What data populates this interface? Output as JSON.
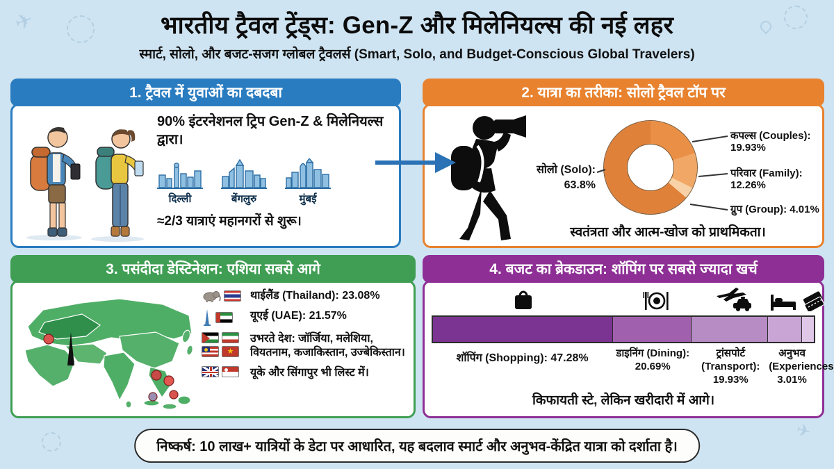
{
  "page": {
    "title": "भारतीय ट्रैवल ट्रेंड्स: Gen-Z और मिलेनियल्स की नई लहर",
    "subtitle": "स्मार्ट, सोलो, और बजट-सजग ग्लोबल ट्रैवलर्स (Smart, Solo, and Budget-Conscious Global Travelers)",
    "footer": "निष्कर्ष: 10 लाख+ यात्रियों के डेटा पर आधारित, यह बदलाव स्मार्ट और अनुभव-केंद्रित यात्रा को दर्शाता है।",
    "colors": {
      "background": "#cfe4f2",
      "panel1_accent": "#2a7cc0",
      "panel2_accent": "#e8822e",
      "panel3_accent": "#3f9e53",
      "panel4_accent": "#8e2f96"
    }
  },
  "panel1": {
    "header": "1. ट्रैवल में युवाओं का दबदबा",
    "stat": "90% इंटरनेशनल ट्रिप Gen-Z & मिलेनियल्स द्वारा।",
    "cities": [
      "दिल्ली",
      "बेंगलुरु",
      "मुंबई"
    ],
    "caption": "≈2/3 यात्राएं महानगरों से शुरू।",
    "icons": [
      "travelers-illustration",
      "city-skyline-delhi",
      "city-skyline-bengaluru",
      "city-skyline-mumbai"
    ]
  },
  "panel2": {
    "header": "2. यात्रा का तरीका: सोलो ट्रैवल टॉप पर",
    "caption": "स्वतंत्रता और आत्म-खोज को प्राथमिकता।",
    "icons": [
      "solo-photographer-silhouette"
    ]
  },
  "panel3": {
    "header": "3. पसंदीदा डेस्टिनेशन: एशिया सबसे आगे",
    "items": [
      "थाईलैंड (Thailand): 23.08%",
      "यूएई (UAE): 21.57%",
      "उभरते देश: जॉर्जिया, मलेशिया, वियतनाम, कजाकिस्तान, उज्बेकिस्तान।",
      "यूके और सिंगापुर भी लिस्ट में।"
    ],
    "icons": [
      "asia-map",
      "elephant-icon",
      "thailand-flag",
      "burj-khalifa-icon",
      "uae-flag",
      "jordan-flag",
      "iran-flag",
      "malaysia-flag",
      "vietnam-flag",
      "uk-flag",
      "singapore-flag"
    ]
  },
  "panel4": {
    "header": "4. बजट का ब्रेकडाउन: शॉपिंग पर सबसे ज्यादा खर्च",
    "caption": "किफायती स्टे, लेकिन खरीदारी में आगे।",
    "icons": [
      "shopping-bag-icon",
      "dining-icon",
      "plane-taxi-icon",
      "hotel-bed-icon",
      "tickets-icon"
    ]
  },
  "chart_data": [
    {
      "type": "pie",
      "subtype": "donut",
      "title": "2. यात्रा का तरीका: सोलो ट्रैवल टॉप पर",
      "series": [
        {
          "name": "सोलो (Solo)",
          "value": 63.8,
          "color": "#e0813a"
        },
        {
          "name": "कपल्स (Couples)",
          "value": 19.93,
          "color": "#ea8f46"
        },
        {
          "name": "परिवार (Family)",
          "value": 12.26,
          "color": "#f1a765"
        },
        {
          "name": "ग्रुप (Group)",
          "value": 4.01,
          "color": "#f8d2a6"
        }
      ],
      "left_label": {
        "title": "सोलो (Solo):",
        "value": "63.8%"
      },
      "right_labels": [
        "कपल्स (Couples): 19.93%",
        "परिवार (Family): 12.26%",
        "ग्रुप (Group): 4.01%"
      ],
      "legend_position": "around-donut"
    },
    {
      "type": "bar",
      "stacked": true,
      "title": "4. बजट का ब्रेकडाउन: शॉपिंग पर सबसे ज्यादा खर्च",
      "segments": [
        {
          "label": "शॉपिंग (Shopping)",
          "value": 47.28,
          "color": "#7b3492"
        },
        {
          "label": "डाइनिंग (Dining)",
          "value": 20.69,
          "color": "#a160ae"
        },
        {
          "label": "ट्रांसपोर्ट (Transport)",
          "value": 19.93,
          "color": "#b78cc5"
        },
        {
          "label": "",
          "value": 9.09,
          "color": "#c8a5d5",
          "note": "unlabeled segment shown in bar"
        },
        {
          "label": "अनुभव (Experiences)",
          "value": 3.01,
          "color": "#e0c7e8"
        }
      ],
      "labels": [
        "शॉपिंग (Shopping): 47.28%",
        "डाइनिंग (Dining): 20.69%",
        "ट्रांसपोर्ट (Transport): 19.93%",
        "अनुभव (Experiences): 3.01%"
      ],
      "xlim": [
        0,
        100
      ]
    }
  ]
}
